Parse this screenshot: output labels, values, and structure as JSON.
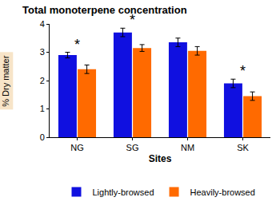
{
  "chart_data": {
    "type": "bar",
    "title": "Total monoterpene concentration",
    "x_label": "Sites",
    "y_label": "% Dry matter",
    "categories": [
      "NG",
      "SG",
      "NM",
      "SK"
    ],
    "series": [
      {
        "name": "Lightly-browsed",
        "color": "#1010e0",
        "values": [
          2.9,
          3.7,
          3.35,
          1.9
        ],
        "errors": [
          0.1,
          0.15,
          0.15,
          0.15
        ]
      },
      {
        "name": "Heavily-browsed",
        "color": "#ff6a00",
        "values": [
          2.4,
          3.15,
          3.05,
          1.45
        ],
        "errors": [
          0.15,
          0.12,
          0.15,
          0.15
        ]
      }
    ],
    "ylim": [
      0,
      4
    ],
    "yticks": [
      0,
      1,
      2,
      3,
      4
    ],
    "grid": false,
    "legend": "bottom",
    "annotations": [
      {
        "category": "NG",
        "text": "*"
      },
      {
        "category": "SG",
        "text": "*"
      },
      {
        "category": "SK",
        "text": "*"
      }
    ]
  }
}
